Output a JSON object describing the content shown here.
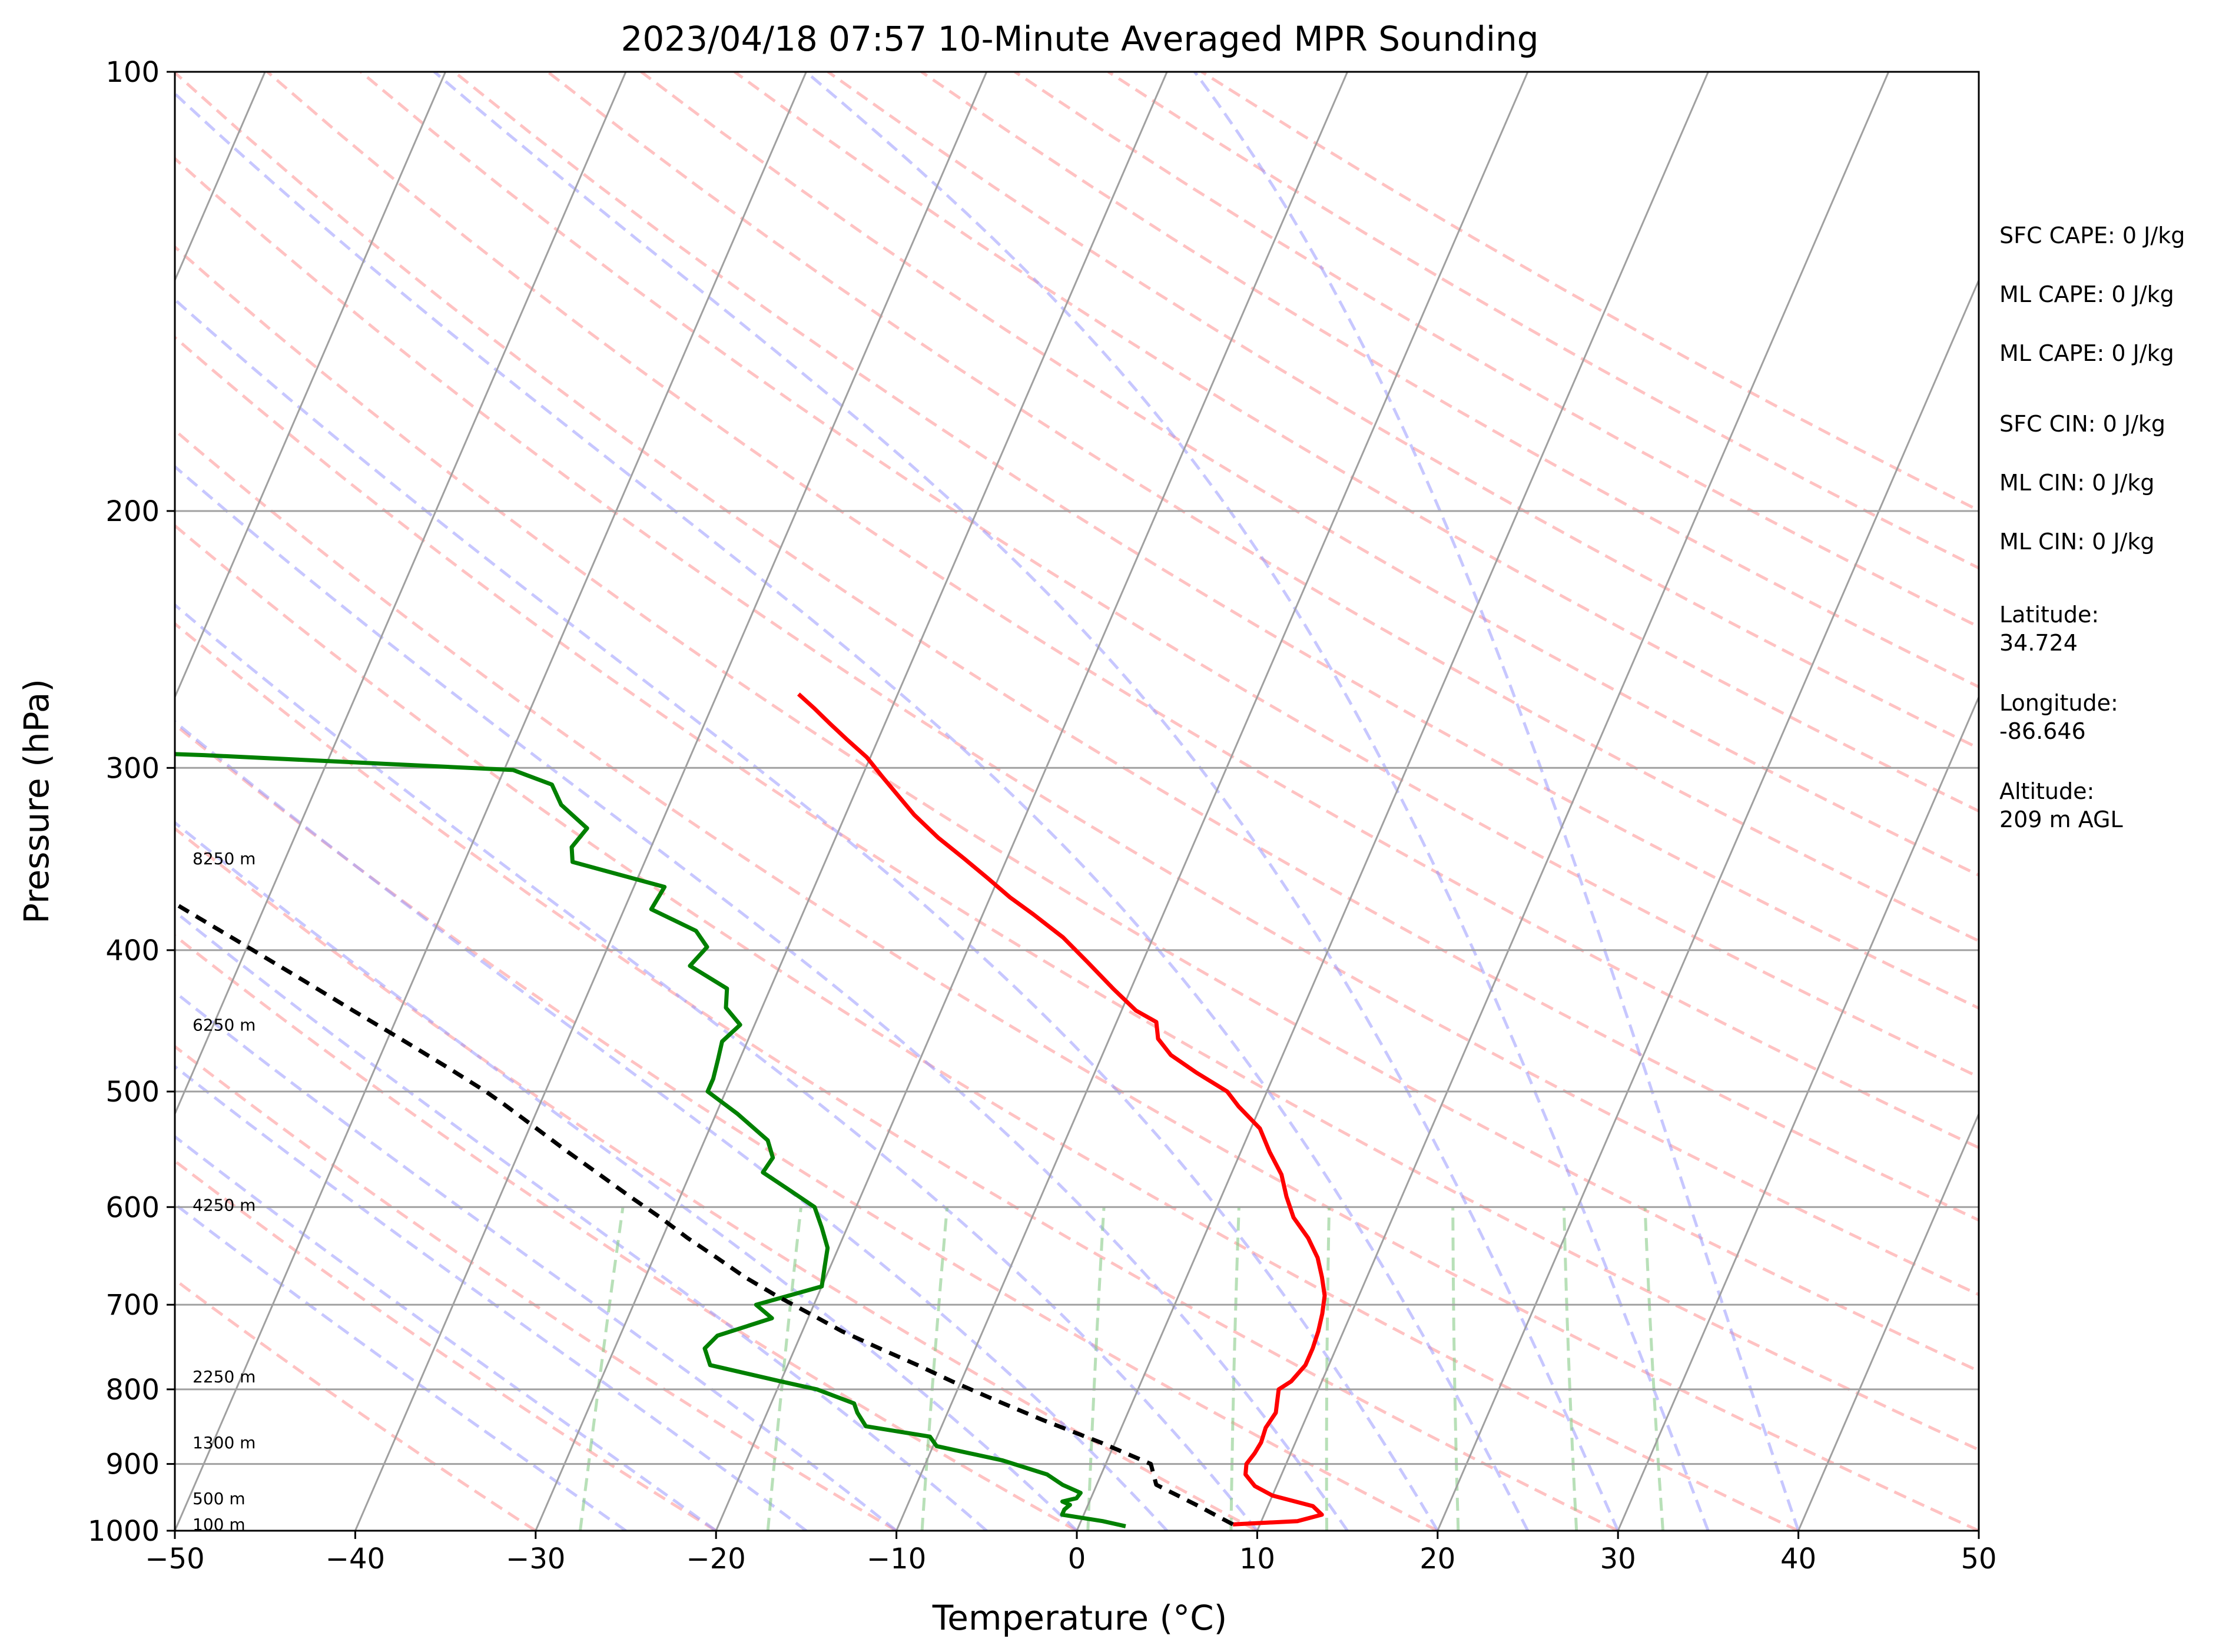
{
  "chart_data": {
    "type": "line",
    "subtype": "skew-t log-p sounding",
    "title": "2023/04/18 07:57 10-Minute Averaged MPR Sounding",
    "xlabel": "Temperature (°C)",
    "ylabel": "Pressure (hPa)",
    "xlim": [
      -50,
      50
    ],
    "ylim": [
      1000,
      100
    ],
    "y_scale": "log",
    "grid": true,
    "x_ticks": [
      "−50",
      "−40",
      "−30",
      "−20",
      "−10",
      "0",
      "10",
      "20",
      "30",
      "40",
      "50"
    ],
    "y_ticks": [
      "100",
      "200",
      "300",
      "400",
      "500",
      "600",
      "700",
      "800",
      "900",
      "1000"
    ],
    "height_labels": [
      "8250 m",
      "6250 m",
      "4250 m",
      "2250 m",
      "1300 m",
      "500 m",
      "100 m"
    ],
    "series": [
      {
        "color": "#ff0000",
        "points": [
          [
            8.5,
            990
          ],
          [
            12.0,
            985
          ],
          [
            13.2,
            975
          ],
          [
            12.5,
            962
          ],
          [
            10.0,
            946
          ],
          [
            8.8,
            932
          ],
          [
            8.0,
            915
          ],
          [
            7.8,
            900
          ],
          [
            8.0,
            885
          ],
          [
            8.1,
            870
          ],
          [
            8.0,
            850
          ],
          [
            8.2,
            830
          ],
          [
            8.0,
            815
          ],
          [
            7.8,
            800
          ],
          [
            8.3,
            790
          ],
          [
            8.7,
            770
          ],
          [
            8.7,
            750
          ],
          [
            8.6,
            730
          ],
          [
            8.4,
            710
          ],
          [
            8.1,
            690
          ],
          [
            7.5,
            670
          ],
          [
            6.8,
            650
          ],
          [
            5.8,
            630
          ],
          [
            4.5,
            610
          ],
          [
            3.6,
            590
          ],
          [
            2.8,
            570
          ],
          [
            1.6,
            550
          ],
          [
            0.5,
            530
          ],
          [
            -1.2,
            512
          ],
          [
            -2.2,
            500
          ],
          [
            -4.4,
            485
          ],
          [
            -6.2,
            472
          ],
          [
            -7.3,
            460
          ],
          [
            -7.8,
            448
          ],
          [
            -9.2,
            440
          ],
          [
            -11.0,
            425
          ],
          [
            -13.0,
            408
          ],
          [
            -15.0,
            392
          ],
          [
            -17.2,
            378
          ],
          [
            -18.9,
            368
          ],
          [
            -20.6,
            357
          ],
          [
            -22.4,
            346
          ],
          [
            -24.3,
            335
          ],
          [
            -26.2,
            323
          ],
          [
            -27.6,
            313
          ],
          [
            -28.9,
            304
          ],
          [
            -30.2,
            295
          ],
          [
            -31.7,
            287
          ],
          [
            -33.0,
            280
          ],
          [
            -34.3,
            273
          ],
          [
            -35.5,
            267
          ]
        ]
      },
      {
        "color": "#008000",
        "points": [
          [
            2.6,
            993
          ],
          [
            1.2,
            985
          ],
          [
            -1.2,
            975
          ],
          [
            -1.2,
            967
          ],
          [
            -1.0,
            960
          ],
          [
            -1.5,
            955
          ],
          [
            -0.8,
            950
          ],
          [
            -0.7,
            942
          ],
          [
            -1.9,
            930
          ],
          [
            -3.0,
            915
          ],
          [
            -5.8,
            895
          ],
          [
            -9.8,
            875
          ],
          [
            -10.4,
            862
          ],
          [
            -14.2,
            848
          ],
          [
            -15.0,
            830
          ],
          [
            -15.4,
            818
          ],
          [
            -17.8,
            800
          ],
          [
            -20.0,
            790
          ],
          [
            -24.3,
            770
          ],
          [
            -25.0,
            750
          ],
          [
            -24.6,
            735
          ],
          [
            -22.0,
            715
          ],
          [
            -23.2,
            700
          ],
          [
            -20.0,
            680
          ],
          [
            -20.3,
            660
          ],
          [
            -20.6,
            640
          ],
          [
            -21.4,
            620
          ],
          [
            -22.3,
            600
          ],
          [
            -24.0,
            585
          ],
          [
            -26.0,
            568
          ],
          [
            -25.8,
            555
          ],
          [
            -26.5,
            540
          ],
          [
            -28.8,
            518
          ],
          [
            -31.0,
            500
          ],
          [
            -31.0,
            490
          ],
          [
            -31.2,
            475
          ],
          [
            -31.4,
            462
          ],
          [
            -30.8,
            450
          ],
          [
            -32.0,
            438
          ],
          [
            -32.4,
            425
          ],
          [
            -35.0,
            410
          ],
          [
            -34.5,
            398
          ],
          [
            -35.5,
            388
          ],
          [
            -38.5,
            375
          ],
          [
            -38.3,
            362
          ],
          [
            -44.0,
            348
          ],
          [
            -44.4,
            340
          ],
          [
            -44.0,
            330
          ],
          [
            -46.0,
            318
          ],
          [
            -47.0,
            308
          ],
          [
            -49.5,
            301
          ],
          [
            -67.0,
            294
          ],
          [
            -85.0,
            289
          ]
        ]
      },
      {
        "color": "#000000",
        "dashed": true,
        "points": [
          [
            8.5,
            990
          ],
          [
            6.0,
            960
          ],
          [
            3.3,
            930
          ],
          [
            2.5,
            900
          ],
          [
            -0.8,
            870
          ],
          [
            -4.5,
            840
          ],
          [
            -7.5,
            815
          ],
          [
            -10.5,
            790
          ],
          [
            -12.8,
            770
          ],
          [
            -15.3,
            750
          ],
          [
            -17.8,
            730
          ],
          [
            -20.0,
            710
          ],
          [
            -22.3,
            690
          ],
          [
            -24.5,
            670
          ],
          [
            -26.5,
            650
          ],
          [
            -28.6,
            630
          ],
          [
            -30.6,
            610
          ],
          [
            -32.8,
            590
          ],
          [
            -35.0,
            570
          ],
          [
            -37.3,
            550
          ],
          [
            -39.6,
            530
          ],
          [
            -42.0,
            510
          ],
          [
            -43.3,
            500
          ],
          [
            -46.2,
            480
          ],
          [
            -49.3,
            460
          ],
          [
            -52.6,
            440
          ],
          [
            -56.0,
            420
          ],
          [
            -59.6,
            400
          ],
          [
            -63.4,
            380
          ],
          [
            -67.4,
            360
          ],
          [
            -71.7,
            340
          ],
          [
            -76.3,
            320
          ],
          [
            -81.2,
            300
          ],
          [
            -86.5,
            280
          ],
          [
            -90.0,
            268
          ]
        ]
      }
    ],
    "info_labels": [
      "SFC CAPE: 0 J/kg",
      "ML CAPE: 0 J/kg",
      "ML CAPE: 0 J/kg",
      "SFC CIN: 0 J/kg",
      "ML CIN: 0 J/kg",
      "ML CIN: 0 J/kg",
      "Latitude:",
      "34.724",
      "Longitude:",
      "-86.646",
      "Altitude:",
      "209 m AGL"
    ],
    "colors": {
      "dry_adiabats": "#ff9999",
      "moist_adiabats": "#9999ff",
      "mixing_ratio": "#88cc88",
      "isotherms": "#a0a0a0"
    }
  }
}
